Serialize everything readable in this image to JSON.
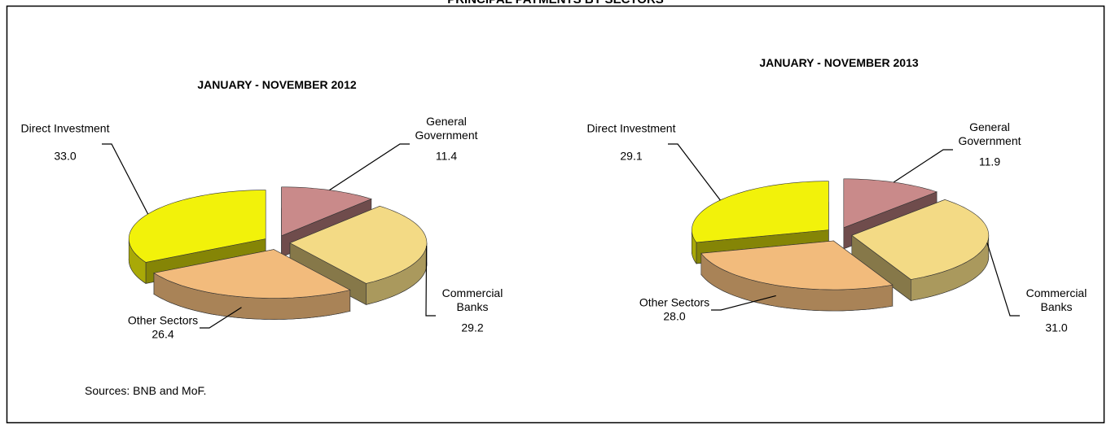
{
  "title": "PRINCIPAL PAYMENTS BY SECTORS",
  "source": "Sources: BNB and MoF.",
  "chart_data": [
    {
      "type": "pie",
      "title": "JANUARY - NOVEMBER 2012",
      "categories": [
        "General Government",
        "Commercial Banks",
        "Other Sectors",
        "Direct Investment"
      ],
      "values": [
        11.4,
        29.2,
        26.4,
        33.0
      ],
      "value_labels": [
        "11.4",
        "29.2",
        "26.4",
        "33.0"
      ],
      "colors": [
        "#c98a8a",
        "#f3da85",
        "#f2bb7c",
        "#f2f20a"
      ]
    },
    {
      "type": "pie",
      "title": "JANUARY - NOVEMBER 2013",
      "categories": [
        "General Government",
        "Commercial Banks",
        "Other Sectors",
        "Direct Investment"
      ],
      "values": [
        11.9,
        31.0,
        28.0,
        29.1
      ],
      "value_labels": [
        "11.9",
        "31.0",
        "28.0",
        "29.1"
      ],
      "colors": [
        "#c98a8a",
        "#f3da85",
        "#f2bb7c",
        "#f2f20a"
      ]
    }
  ]
}
